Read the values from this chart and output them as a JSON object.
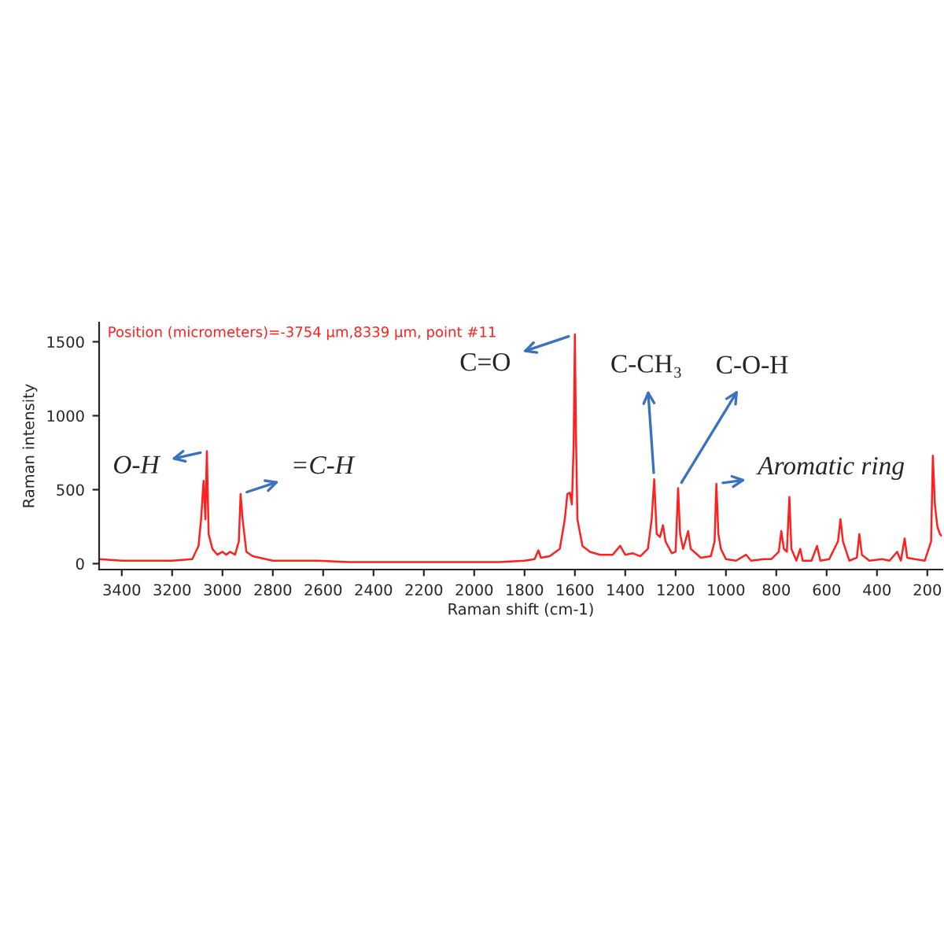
{
  "chart_data": {
    "type": "line",
    "xlabel": "Raman shift (cm-1)",
    "ylabel": "Raman intensity",
    "x": [
      3490,
      3400,
      3300,
      3200,
      3120,
      3095,
      3085,
      3075,
      3068,
      3062,
      3055,
      3040,
      3020,
      3000,
      2985,
      2970,
      2950,
      2935,
      2928,
      2920,
      2905,
      2880,
      2800,
      2700,
      2620,
      2500,
      2300,
      2100,
      1900,
      1800,
      1760,
      1745,
      1735,
      1700,
      1660,
      1640,
      1630,
      1620,
      1612,
      1605,
      1600,
      1596,
      1590,
      1570,
      1540,
      1500,
      1450,
      1420,
      1400,
      1370,
      1340,
      1310,
      1295,
      1285,
      1275,
      1262,
      1250,
      1240,
      1215,
      1200,
      1190,
      1182,
      1170,
      1150,
      1140,
      1100,
      1060,
      1045,
      1038,
      1030,
      1020,
      1000,
      960,
      920,
      900,
      850,
      820,
      790,
      780,
      770,
      758,
      748,
      740,
      720,
      705,
      695,
      660,
      638,
      625,
      590,
      555,
      545,
      535,
      510,
      480,
      470,
      460,
      430,
      380,
      350,
      320,
      305,
      290,
      280,
      250,
      210,
      185,
      178,
      170,
      160,
      150,
      145
    ],
    "series": [
      {
        "color": "#ff2020",
        "values": [
          30,
          20,
          20,
          20,
          30,
          120,
          300,
          560,
          300,
          760,
          200,
          100,
          60,
          80,
          60,
          80,
          60,
          150,
          470,
          300,
          80,
          50,
          20,
          20,
          20,
          10,
          10,
          10,
          10,
          20,
          30,
          90,
          40,
          50,
          100,
          300,
          470,
          480,
          400,
          800,
          1550,
          900,
          300,
          120,
          80,
          60,
          60,
          120,
          60,
          70,
          50,
          100,
          300,
          570,
          200,
          180,
          260,
          150,
          70,
          80,
          510,
          200,
          100,
          220,
          100,
          40,
          50,
          150,
          540,
          200,
          100,
          30,
          20,
          60,
          20,
          30,
          30,
          80,
          220,
          100,
          80,
          450,
          100,
          20,
          100,
          20,
          20,
          120,
          20,
          30,
          150,
          300,
          150,
          20,
          40,
          200,
          60,
          20,
          30,
          20,
          80,
          20,
          170,
          40,
          30,
          20,
          150,
          730,
          400,
          250,
          200,
          190
        ]
      }
    ],
    "xlim": [
      3490,
      140
    ],
    "ylim": [
      -40,
      1630
    ],
    "xticks": [
      3400,
      3200,
      3000,
      2800,
      2600,
      2400,
      2200,
      2000,
      1800,
      1600,
      1400,
      1200,
      1000,
      800,
      600,
      400,
      200
    ],
    "yticks": [
      0,
      500,
      1000,
      1500
    ],
    "grid": false,
    "legend": false,
    "annotations": [
      "Position (micrometers)=-3754 µm,8339 µm, point #11",
      {
        "text": "O-H",
        "x": 3062,
        "y": 760
      },
      {
        "text": "=C-H",
        "x": 2928,
        "y": 470
      },
      {
        "text": "C=O",
        "x": 1600,
        "y": 1550
      },
      {
        "text": "C-CH₃",
        "x": 1285,
        "y": 570
      },
      {
        "text": "C-O-H",
        "x": 1190,
        "y": 510
      },
      {
        "text": "Aromatic ring",
        "x": 1038,
        "y": 540
      }
    ]
  }
}
